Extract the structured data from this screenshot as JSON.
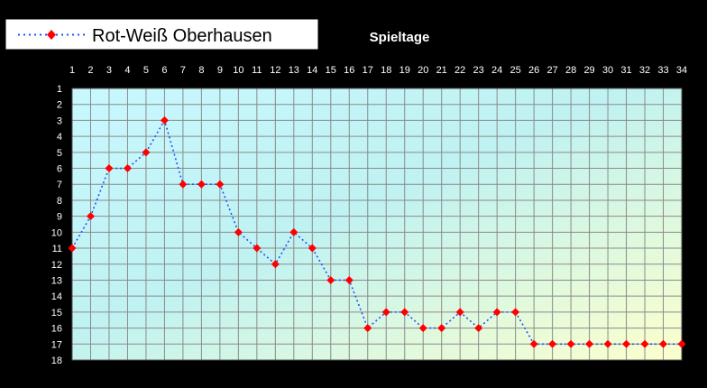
{
  "chart_data": {
    "type": "line",
    "title": "",
    "xlabel": "Spieltage",
    "ylabel": "",
    "x_axis_position": "top",
    "y_axis_inverted": true,
    "xlim": [
      1,
      34
    ],
    "ylim": [
      1,
      18
    ],
    "x_ticks": [
      "1",
      "2",
      "3",
      "4",
      "5",
      "6",
      "7",
      "8",
      "9",
      "10",
      "11",
      "12",
      "13",
      "14",
      "15",
      "16",
      "17",
      "18",
      "19",
      "20",
      "21",
      "22",
      "23",
      "24",
      "25",
      "26",
      "27",
      "28",
      "29",
      "30",
      "31",
      "32",
      "33",
      "34"
    ],
    "y_ticks": [
      "1",
      "2",
      "3",
      "4",
      "5",
      "6",
      "7",
      "8",
      "9",
      "10",
      "11",
      "12",
      "13",
      "14",
      "15",
      "16",
      "17",
      "18"
    ],
    "grid": true,
    "legend_position": "top-left",
    "series": [
      {
        "name": "Rot-Weiß Oberhausen",
        "line_color": "#2050ff",
        "marker_color": "#ff0000",
        "line_style": "dotted",
        "marker": "diamond",
        "x": [
          1,
          2,
          3,
          4,
          5,
          6,
          7,
          8,
          9,
          10,
          11,
          12,
          13,
          14,
          15,
          16,
          17,
          18,
          19,
          20,
          21,
          22,
          23,
          24,
          25,
          26,
          27,
          28,
          29,
          30,
          31,
          32,
          33,
          34
        ],
        "values": [
          11,
          9,
          6,
          6,
          5,
          3,
          7,
          7,
          7,
          10,
          11,
          12,
          10,
          11,
          13,
          13,
          16,
          15,
          15,
          16,
          16,
          15,
          16,
          15,
          15,
          17,
          17,
          17,
          17,
          17,
          17,
          17,
          17,
          17
        ]
      }
    ]
  }
}
